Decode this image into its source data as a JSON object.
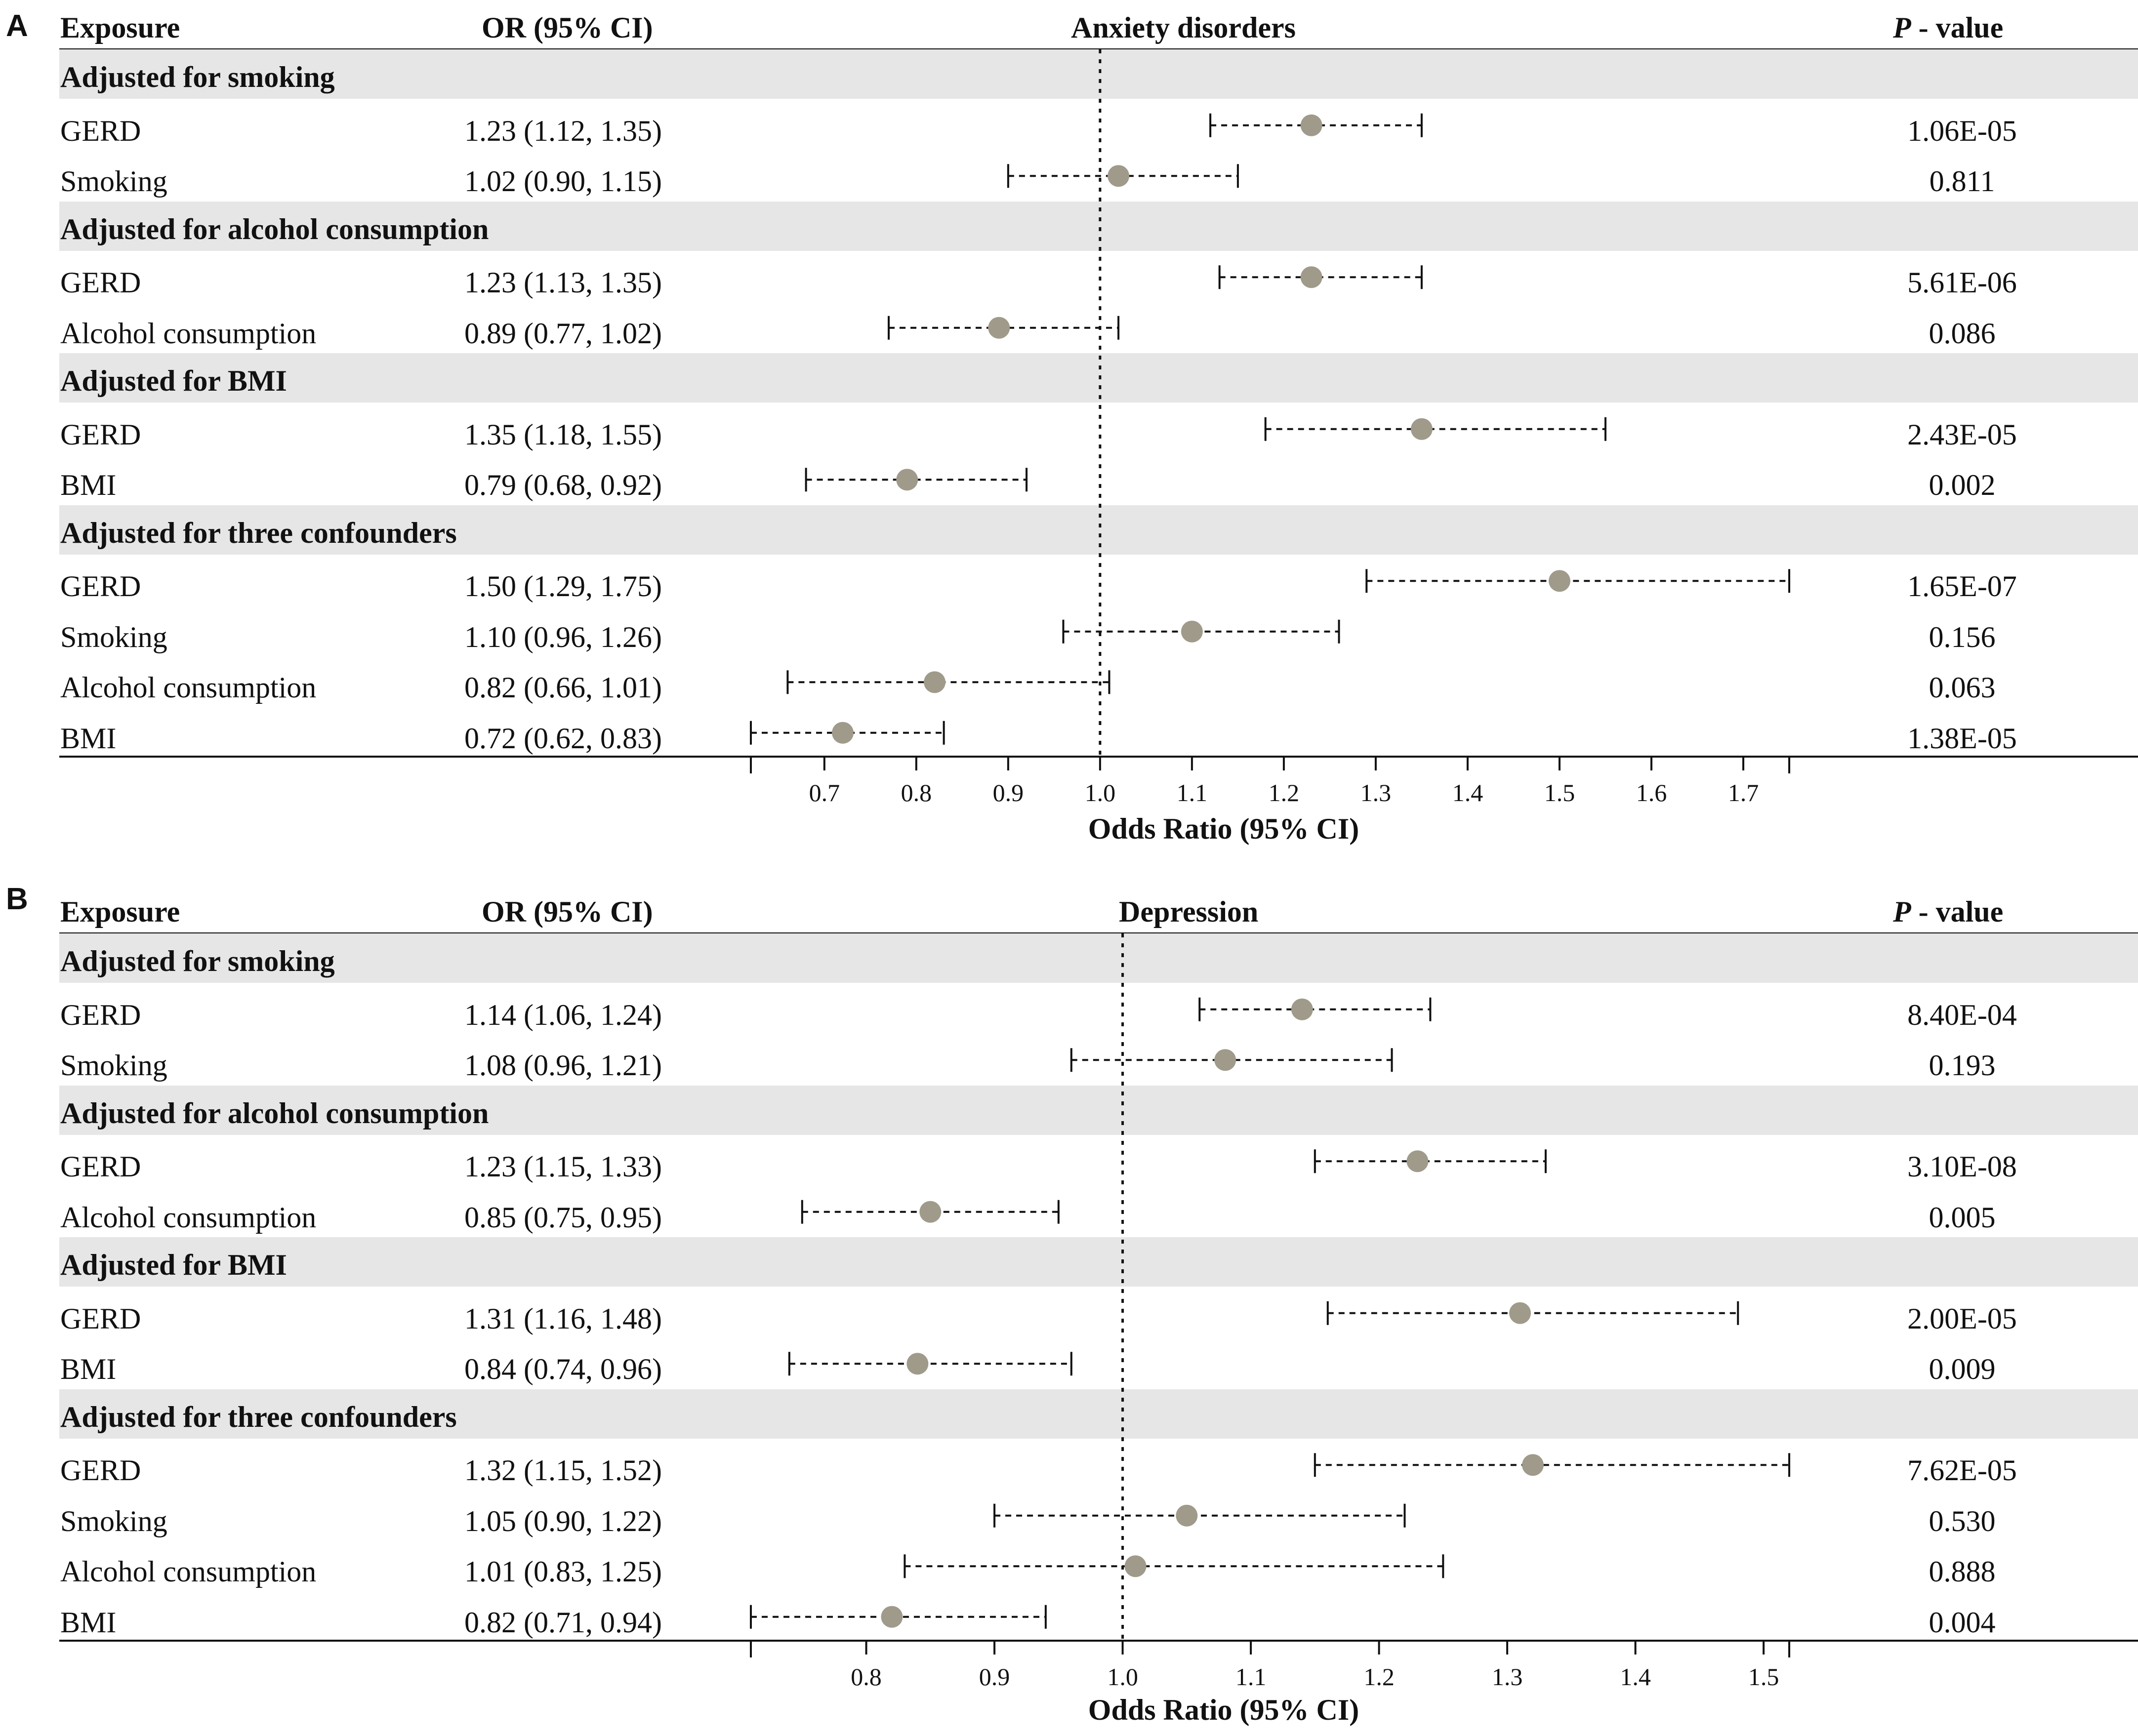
{
  "headers": {
    "exposure": "Exposure",
    "or_ci": "OR (95% CI)",
    "p_italic": "P",
    "p_rest": " - value"
  },
  "colors": {
    "point": "#a09a8b",
    "shade": "#e6e6e6",
    "line": "#111111"
  },
  "chart_data": [
    {
      "panel": "A",
      "type": "forest",
      "title": "Anxiety disorders",
      "xlabel": "Odds Ratio (95% CI)",
      "ref_line": 1.0,
      "xlim": [
        0.62,
        1.75
      ],
      "ticks": [
        "0.7",
        "0.8",
        "0.9",
        "1.0",
        "1.1",
        "1.2",
        "1.3",
        "1.4",
        "1.5",
        "1.6",
        "1.7"
      ],
      "groups": [
        {
          "label": "Adjusted for smoking",
          "rows": [
            {
              "name": "GERD",
              "ci_text": "1.23 (1.12, 1.35)",
              "or": 1.23,
              "low": 1.12,
              "high": 1.35,
              "p": "1.06E-05"
            },
            {
              "name": "Smoking",
              "ci_text": "1.02 (0.90, 1.15)",
              "or": 1.02,
              "low": 0.9,
              "high": 1.15,
              "p": "0.811"
            }
          ]
        },
        {
          "label": "Adjusted for alcohol consumption",
          "rows": [
            {
              "name": "GERD",
              "ci_text": "1.23 (1.13, 1.35)",
              "or": 1.23,
              "low": 1.13,
              "high": 1.35,
              "p": "5.61E-06"
            },
            {
              "name": "Alcohol consumption",
              "ci_text": "0.89 (0.77, 1.02)",
              "or": 0.89,
              "low": 0.77,
              "high": 1.02,
              "p": "0.086"
            }
          ]
        },
        {
          "label": "Adjusted for BMI",
          "rows": [
            {
              "name": "GERD",
              "ci_text": "1.35 (1.18, 1.55)",
              "or": 1.35,
              "low": 1.18,
              "high": 1.55,
              "p": "2.43E-05"
            },
            {
              "name": "BMI",
              "ci_text": "0.79 (0.68, 0.92)",
              "or": 0.79,
              "low": 0.68,
              "high": 0.92,
              "p": "0.002"
            }
          ]
        },
        {
          "label": "Adjusted for three confounders",
          "rows": [
            {
              "name": "GERD",
              "ci_text": "1.50 (1.29, 1.75)",
              "or": 1.5,
              "low": 1.29,
              "high": 1.75,
              "p": "1.65E-07"
            },
            {
              "name": "Smoking",
              "ci_text": "1.10 (0.96, 1.26)",
              "or": 1.1,
              "low": 0.96,
              "high": 1.26,
              "p": "0.156"
            },
            {
              "name": "Alcohol consumption",
              "ci_text": "0.82 (0.66, 1.01)",
              "or": 0.82,
              "low": 0.66,
              "high": 1.01,
              "p": "0.063"
            },
            {
              "name": "BMI",
              "ci_text": "0.72 (0.62, 0.83)",
              "or": 0.72,
              "low": 0.62,
              "high": 0.83,
              "p": "1.38E-05"
            }
          ]
        }
      ]
    },
    {
      "panel": "B",
      "type": "forest",
      "title": "Depression",
      "xlabel": "Odds Ratio (95% CI)",
      "ref_line": 1.0,
      "xlim": [
        0.71,
        1.52
      ],
      "ticks": [
        "0.8",
        "0.9",
        "1.0",
        "1.1",
        "1.2",
        "1.3",
        "1.4",
        "1.5"
      ],
      "groups": [
        {
          "label": "Adjusted for smoking",
          "rows": [
            {
              "name": "GERD",
              "ci_text": "1.14 (1.06, 1.24)",
              "or": 1.14,
              "low": 1.06,
              "high": 1.24,
              "p": "8.40E-04"
            },
            {
              "name": "Smoking",
              "ci_text": "1.08 (0.96, 1.21)",
              "or": 1.08,
              "low": 0.96,
              "high": 1.21,
              "p": "0.193"
            }
          ]
        },
        {
          "label": "Adjusted for alcohol consumption",
          "rows": [
            {
              "name": "GERD",
              "ci_text": "1.23 (1.15, 1.33)",
              "or": 1.23,
              "low": 1.15,
              "high": 1.33,
              "p": "3.10E-08"
            },
            {
              "name": "Alcohol consumption",
              "ci_text": "0.85 (0.75, 0.95)",
              "or": 0.85,
              "low": 0.75,
              "high": 0.95,
              "p": "0.005"
            }
          ]
        },
        {
          "label": "Adjusted for BMI",
          "rows": [
            {
              "name": "GERD",
              "ci_text": "1.31 (1.16, 1.48)",
              "or": 1.31,
              "low": 1.16,
              "high": 1.48,
              "p": "2.00E-05"
            },
            {
              "name": "BMI",
              "ci_text": "0.84 (0.74, 0.96)",
              "or": 0.84,
              "low": 0.74,
              "high": 0.96,
              "p": "0.009"
            }
          ]
        },
        {
          "label": "Adjusted for three confounders",
          "rows": [
            {
              "name": "GERD",
              "ci_text": "1.32 (1.15, 1.52)",
              "or": 1.32,
              "low": 1.15,
              "high": 1.52,
              "p": "7.62E-05"
            },
            {
              "name": "Smoking",
              "ci_text": "1.05 (0.90, 1.22)",
              "or": 1.05,
              "low": 0.9,
              "high": 1.22,
              "p": "0.530"
            },
            {
              "name": "Alcohol consumption",
              "ci_text": "1.01 (0.83, 1.25)",
              "or": 1.01,
              "low": 0.83,
              "high": 1.25,
              "p": "0.888"
            },
            {
              "name": "BMI",
              "ci_text": "0.82 (0.71, 0.94)",
              "or": 0.82,
              "low": 0.71,
              "high": 0.94,
              "p": "0.004"
            }
          ]
        }
      ]
    }
  ]
}
